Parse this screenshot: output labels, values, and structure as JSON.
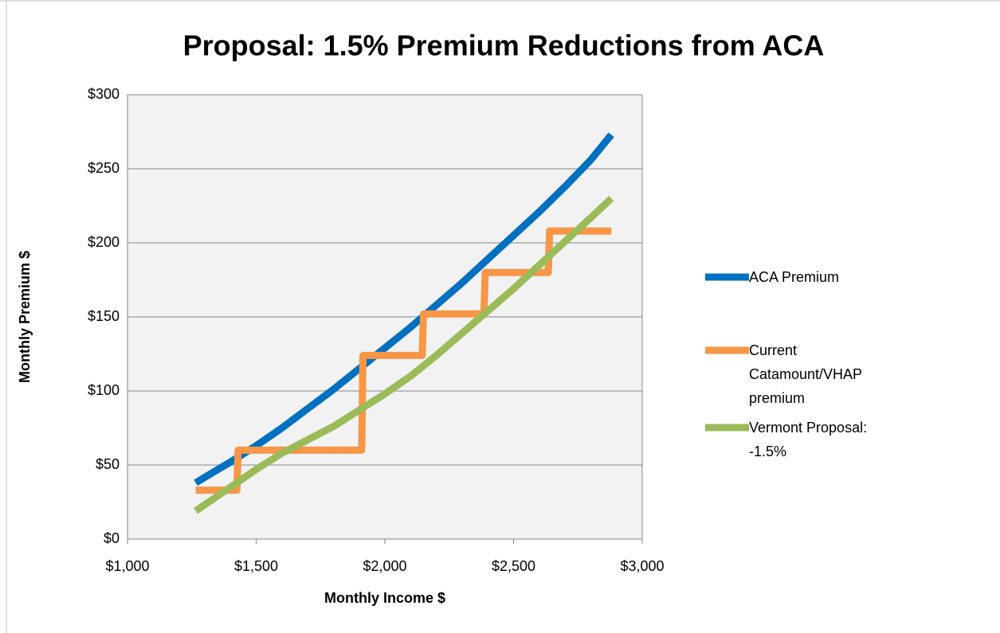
{
  "chart_data": {
    "type": "line",
    "title": "Proposal: 1.5% Premium Reductions from ACA",
    "x_label": "Monthly Income $",
    "y_label": "Monthly Premium $",
    "xlim": [
      1000,
      3000
    ],
    "xticks": [
      {
        "value": 1000,
        "label": "$1,000"
      },
      {
        "value": 1500,
        "label": "$1,500"
      },
      {
        "value": 2000,
        "label": "$2,000"
      },
      {
        "value": 2500,
        "label": "$2,500"
      },
      {
        "value": 3000,
        "label": "$3,000"
      }
    ],
    "ylim": [
      0,
      300
    ],
    "yticks": [
      {
        "value": 0,
        "label": "$0"
      },
      {
        "value": 50,
        "label": "$50"
      },
      {
        "value": 100,
        "label": "$100"
      },
      {
        "value": 150,
        "label": "$150"
      },
      {
        "value": 200,
        "label": "$200"
      },
      {
        "value": 250,
        "label": "$250"
      },
      {
        "value": 300,
        "label": "$300"
      }
    ],
    "grid": true,
    "legend": "right",
    "series": [
      {
        "name": "ACA Premium",
        "color": "#0070c0",
        "x": [
          1265,
          1400,
          1500,
          1600,
          1700,
          1800,
          1900,
          2000,
          2100,
          2200,
          2300,
          2400,
          2500,
          2600,
          2700,
          2800,
          2880
        ],
        "values": [
          38,
          52,
          63,
          75,
          88,
          101,
          115,
          129,
          143,
          158,
          173,
          189,
          205,
          221,
          238,
          256,
          273
        ]
      },
      {
        "name": "Current Catamount/VHAP premium",
        "color": "#f79646",
        "x": [
          1265,
          1425,
          1430,
          1910,
          1915,
          2145,
          2150,
          2385,
          2390,
          2635,
          2640,
          2880
        ],
        "values": [
          33,
          33,
          60,
          60,
          124,
          124,
          152,
          152,
          180,
          180,
          208,
          208
        ]
      },
      {
        "name": "Vermont Proposal: -1.5%",
        "color": "#9bbb59",
        "x": [
          1265,
          1400,
          1500,
          1600,
          1700,
          1800,
          1900,
          2000,
          2100,
          2200,
          2300,
          2400,
          2500,
          2600,
          2700,
          2800,
          2880
        ],
        "values": [
          19,
          35,
          47,
          58,
          67,
          76,
          87,
          98,
          110,
          124,
          139,
          154,
          169,
          185,
          201,
          217,
          230
        ]
      }
    ]
  }
}
